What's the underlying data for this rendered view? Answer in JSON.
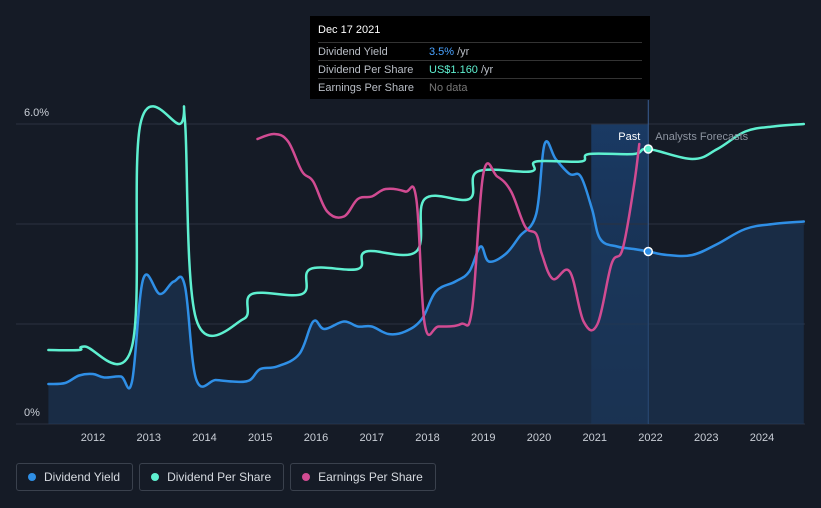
{
  "colors": {
    "dividend_yield": "#2f8fe6",
    "dividend_per_share": "#5ef0d0",
    "earnings_per_share": "#d14b92",
    "past_shade": "#1b3a66"
  },
  "tooltip": {
    "date": "Dec 17 2021",
    "rows": [
      {
        "label": "Dividend Yield",
        "value": "3.5%",
        "unit": "/yr"
      },
      {
        "label": "Dividend Per Share",
        "value": "US$1.160",
        "unit": "/yr"
      },
      {
        "label": "Earnings Per Share",
        "value": "No data",
        "unit": ""
      }
    ]
  },
  "regions": {
    "past": "Past",
    "forecast": "Analysts Forecasts"
  },
  "legend": [
    "Dividend Yield",
    "Dividend Per Share",
    "Earnings Per Share"
  ],
  "chart_data": {
    "type": "line",
    "x_ticks": [
      "2012",
      "2013",
      "2014",
      "2015",
      "2016",
      "2017",
      "2018",
      "2019",
      "2020",
      "2021",
      "2022",
      "2023",
      "2024"
    ],
    "y_tick_labels": [
      "0%",
      "6.0%"
    ],
    "ylim": [
      0,
      6
    ],
    "xlim": [
      2011.2,
      2024.75
    ],
    "past_forecast_split": 2021.96,
    "grid": true,
    "series": [
      {
        "name": "Dividend Yield",
        "points": [
          [
            2011.2,
            0.8
          ],
          [
            2011.5,
            0.82
          ],
          [
            2011.75,
            0.97
          ],
          [
            2012.0,
            1.0
          ],
          [
            2012.2,
            0.93
          ],
          [
            2012.5,
            0.95
          ],
          [
            2012.7,
            0.85
          ],
          [
            2012.9,
            2.9
          ],
          [
            2013.2,
            2.6
          ],
          [
            2013.45,
            2.85
          ],
          [
            2013.65,
            2.75
          ],
          [
            2013.85,
            0.9
          ],
          [
            2014.2,
            0.88
          ],
          [
            2014.5,
            0.85
          ],
          [
            2014.8,
            0.87
          ],
          [
            2015.0,
            1.1
          ],
          [
            2015.3,
            1.15
          ],
          [
            2015.7,
            1.4
          ],
          [
            2015.95,
            2.05
          ],
          [
            2016.15,
            1.9
          ],
          [
            2016.5,
            2.05
          ],
          [
            2016.75,
            1.95
          ],
          [
            2017.0,
            1.95
          ],
          [
            2017.3,
            1.8
          ],
          [
            2017.6,
            1.85
          ],
          [
            2017.9,
            2.1
          ],
          [
            2018.15,
            2.65
          ],
          [
            2018.5,
            2.85
          ],
          [
            2018.75,
            3.05
          ],
          [
            2018.95,
            3.55
          ],
          [
            2019.1,
            3.25
          ],
          [
            2019.4,
            3.4
          ],
          [
            2019.65,
            3.75
          ],
          [
            2019.95,
            4.2
          ],
          [
            2020.1,
            5.6
          ],
          [
            2020.3,
            5.3
          ],
          [
            2020.55,
            5.0
          ],
          [
            2020.75,
            4.95
          ],
          [
            2020.95,
            4.3
          ],
          [
            2021.1,
            3.7
          ],
          [
            2021.4,
            3.55
          ],
          [
            2021.7,
            3.5
          ],
          [
            2021.96,
            3.45
          ],
          [
            2022.3,
            3.38
          ],
          [
            2022.75,
            3.38
          ],
          [
            2023.2,
            3.6
          ],
          [
            2023.7,
            3.9
          ],
          [
            2024.2,
            4.0
          ],
          [
            2024.75,
            4.05
          ]
        ]
      },
      {
        "name": "Dividend Per Share",
        "points": [
          [
            2011.2,
            1.48
          ],
          [
            2011.75,
            1.48
          ],
          [
            2011.85,
            1.55
          ],
          [
            2012.7,
            1.55
          ],
          [
            2012.85,
            6.0
          ],
          [
            2013.55,
            6.0
          ],
          [
            2013.65,
            6.05
          ],
          [
            2013.85,
            2.1
          ],
          [
            2014.7,
            2.1
          ],
          [
            2014.85,
            2.6
          ],
          [
            2015.75,
            2.6
          ],
          [
            2015.9,
            3.1
          ],
          [
            2016.75,
            3.1
          ],
          [
            2016.9,
            3.45
          ],
          [
            2017.8,
            3.45
          ],
          [
            2017.95,
            4.5
          ],
          [
            2018.75,
            4.5
          ],
          [
            2018.9,
            5.05
          ],
          [
            2019.85,
            5.05
          ],
          [
            2019.95,
            5.25
          ],
          [
            2020.75,
            5.25
          ],
          [
            2020.9,
            5.4
          ],
          [
            2021.7,
            5.4
          ],
          [
            2021.96,
            5.5
          ],
          [
            2022.75,
            5.3
          ],
          [
            2023.2,
            5.5
          ],
          [
            2023.7,
            5.85
          ],
          [
            2024.2,
            5.95
          ],
          [
            2024.75,
            6.0
          ]
        ]
      },
      {
        "name": "Earnings Per Share",
        "points": [
          [
            2014.95,
            5.7
          ],
          [
            2015.25,
            5.8
          ],
          [
            2015.5,
            5.65
          ],
          [
            2015.75,
            5.05
          ],
          [
            2015.95,
            4.85
          ],
          [
            2016.2,
            4.25
          ],
          [
            2016.5,
            4.15
          ],
          [
            2016.75,
            4.5
          ],
          [
            2017.0,
            4.55
          ],
          [
            2017.25,
            4.7
          ],
          [
            2017.6,
            4.65
          ],
          [
            2017.8,
            4.5
          ],
          [
            2017.95,
            2.0
          ],
          [
            2018.2,
            1.95
          ],
          [
            2018.6,
            2.0
          ],
          [
            2018.8,
            2.3
          ],
          [
            2019.0,
            5.0
          ],
          [
            2019.25,
            4.95
          ],
          [
            2019.5,
            4.65
          ],
          [
            2019.75,
            3.95
          ],
          [
            2019.95,
            3.8
          ],
          [
            2020.05,
            3.4
          ],
          [
            2020.25,
            2.9
          ],
          [
            2020.55,
            3.05
          ],
          [
            2020.8,
            2.05
          ],
          [
            2021.05,
            2.0
          ],
          [
            2021.3,
            3.2
          ],
          [
            2021.5,
            3.5
          ],
          [
            2021.7,
            4.75
          ],
          [
            2021.8,
            5.6
          ]
        ]
      }
    ]
  }
}
